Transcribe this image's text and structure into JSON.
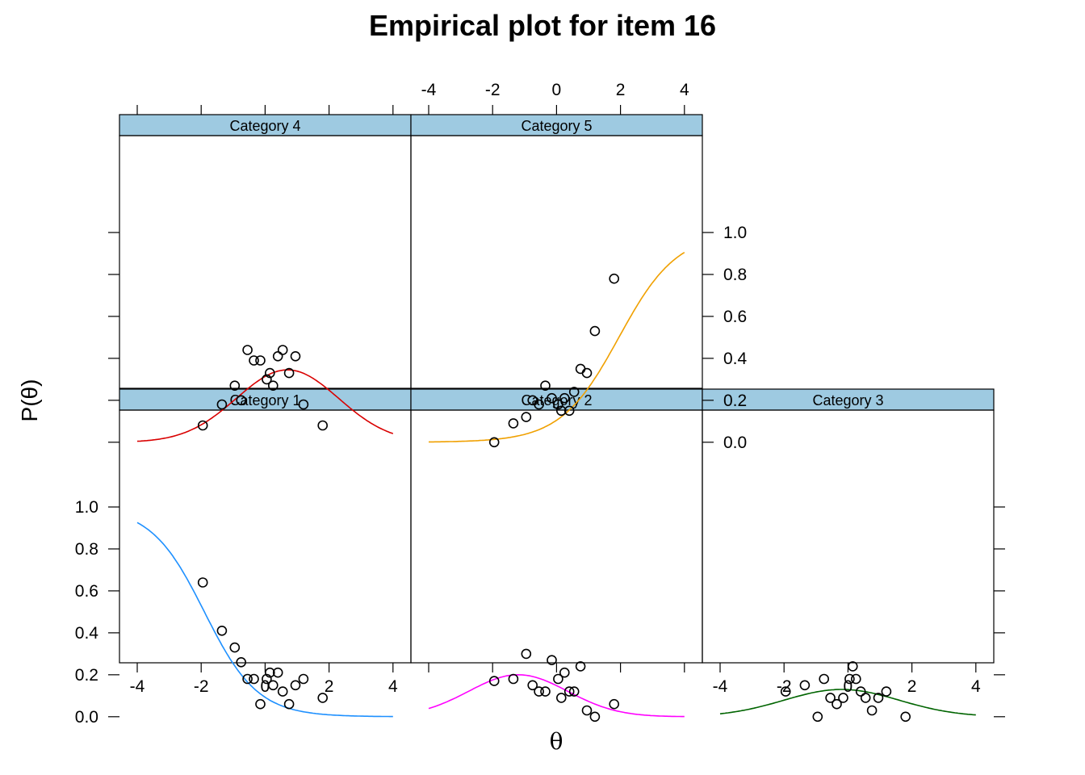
{
  "title": "Empirical plot for item 16",
  "xlabel": "θ",
  "ylabel": "P(θ)",
  "chart_data": {
    "type": "scatter",
    "xlim": [
      -4,
      4
    ],
    "ylim": [
      0,
      1
    ],
    "xticks": [
      "-4",
      "-2",
      "0",
      "2",
      "4"
    ],
    "yticks": [
      "0.0",
      "0.2",
      "0.4",
      "0.6",
      "0.8",
      "1.0"
    ],
    "theta_points": [
      -1.95,
      -1.35,
      -0.95,
      -0.75,
      -0.55,
      -0.35,
      -0.15,
      0.05,
      0.15,
      0.25,
      0.4,
      0.55,
      0.75,
      0.95,
      1.2,
      1.8
    ],
    "panels": [
      {
        "strip": "Category 1",
        "curve_color": "#1E90FF",
        "curve": {
          "a": 1.2,
          "b": -1.9,
          "c": 0.0,
          "c2": 0.0,
          "type": "decreasing"
        },
        "points": [
          0.64,
          0.41,
          0.33,
          0.26,
          0.18,
          0.18,
          0.06,
          0.18,
          0.21,
          0.15,
          0.21,
          0.12,
          0.06,
          0.15,
          0.18,
          0.09
        ]
      },
      {
        "strip": "Category 2",
        "curve_color": "#FF00FF",
        "curve": {
          "peak": 0.2,
          "center": -1.2,
          "width": 1.55
        },
        "points": [
          0.17,
          0.18,
          0.3,
          0.15,
          0.12,
          0.12,
          0.27,
          0.18,
          0.09,
          0.21,
          0.12,
          0.12,
          0.24,
          0.03,
          0.0,
          0.06
        ]
      },
      {
        "strip": "Category 3",
        "curve_color": "#006400",
        "curve": {
          "peak": 0.13,
          "center": -0.2,
          "width": 1.8
        },
        "points": [
          0.12,
          0.15,
          0.0,
          0.18,
          0.09,
          0.06,
          0.09,
          0.18,
          0.24,
          0.18,
          0.12,
          0.09,
          0.03,
          0.09,
          0.12,
          0.0
        ]
      },
      {
        "strip": "Category 4",
        "curve_color": "#D90000",
        "curve": {
          "peak": 0.345,
          "center": 0.7,
          "width": 1.6
        },
        "points": [
          0.08,
          0.18,
          0.27,
          0.2,
          0.44,
          0.39,
          0.39,
          0.3,
          0.33,
          0.27,
          0.41,
          0.44,
          0.33,
          0.41,
          0.18,
          0.08
        ]
      },
      {
        "strip": "Category 5",
        "curve_color": "#F0A000",
        "curve": {
          "a": 1.1,
          "b": 1.95,
          "type": "increasing"
        },
        "points": [
          0.0,
          0.09,
          0.12,
          0.2,
          0.18,
          0.27,
          0.21,
          0.18,
          0.15,
          0.21,
          0.15,
          0.24,
          0.35,
          0.33,
          0.53,
          0.78
        ]
      }
    ]
  }
}
